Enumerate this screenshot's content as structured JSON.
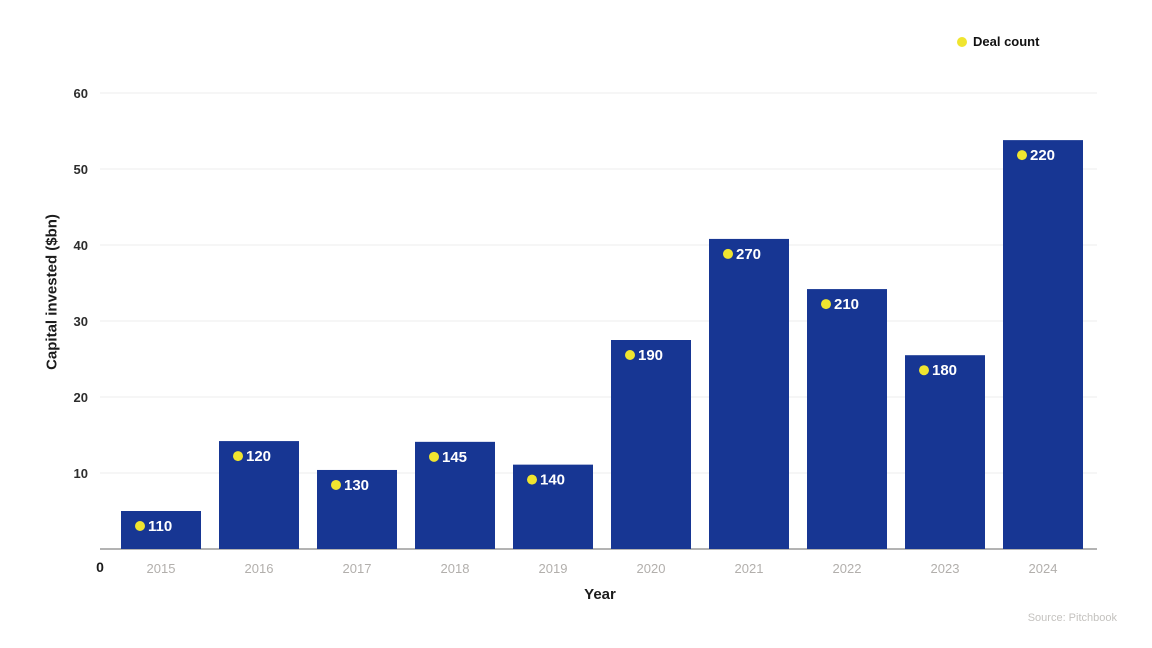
{
  "chart_data": {
    "type": "bar",
    "title": "",
    "categories": [
      "2015",
      "2016",
      "2017",
      "2018",
      "2019",
      "2020",
      "2021",
      "2022",
      "2023",
      "2024"
    ],
    "series": [
      {
        "name": "Capital invested ($bn)",
        "values": [
          5,
          14.2,
          10.4,
          14.1,
          11.1,
          27.5,
          40.8,
          34.2,
          25.5,
          53.8
        ]
      },
      {
        "name": "Deal count",
        "values": [
          110,
          120,
          130,
          145,
          140,
          190,
          270,
          210,
          180,
          220
        ]
      }
    ],
    "xlabel": "Year",
    "ylabel": "Capital invested ($bn)",
    "ylim": [
      0,
      60
    ],
    "yticks": [
      0,
      10,
      20,
      30,
      40,
      50,
      60
    ],
    "grid": true,
    "legend": {
      "label": "Deal count",
      "position": "top-right"
    },
    "source": "Source: Pitchbook",
    "colors": {
      "bar": "#173693",
      "deal_dot": "#f0e52f",
      "bar_label_text": "#ffffff",
      "gridline": "#ececec",
      "axis_line": "#9a9a9a",
      "x_tick": "#b2afac",
      "y_tick": "#2d2d2d",
      "source_text": "#c4c2bf"
    }
  }
}
